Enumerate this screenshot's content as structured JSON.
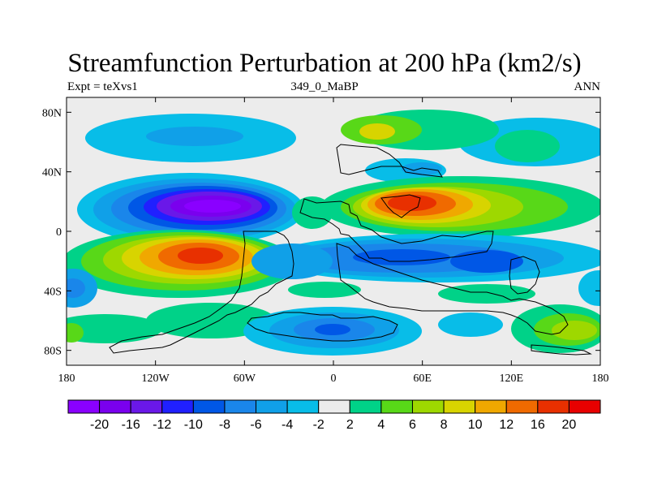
{
  "chart_data": {
    "type": "heatmap",
    "title": "Streamfunction Perturbation at 200 hPa (km2/s)",
    "subtitle_left": "Expt = teXvs1",
    "subtitle_center": "349_0_MaBP",
    "subtitle_right": "ANN",
    "x_range": [
      -180,
      180
    ],
    "y_range": [
      -90,
      90
    ],
    "x_ticks": [
      {
        "value": -180,
        "label": "180"
      },
      {
        "value": -120,
        "label": "120W"
      },
      {
        "value": -60,
        "label": "60W"
      },
      {
        "value": 0,
        "label": "0"
      },
      {
        "value": 60,
        "label": "60E"
      },
      {
        "value": 120,
        "label": "120E"
      },
      {
        "value": 180,
        "label": "180"
      }
    ],
    "y_ticks": [
      {
        "value": 80,
        "label": "80N"
      },
      {
        "value": 40,
        "label": "40N"
      },
      {
        "value": 0,
        "label": "0"
      },
      {
        "value": -40,
        "label": "40S"
      },
      {
        "value": -80,
        "label": "80S"
      }
    ],
    "colorbar": {
      "levels": [
        "-20",
        "-16",
        "-12",
        "-10",
        "-8",
        "-6",
        "-4",
        "-2",
        "2",
        "4",
        "6",
        "8",
        "10",
        "12",
        "16",
        "20"
      ],
      "colors": [
        "#8a00ff",
        "#7a00ee",
        "#6a18e8",
        "#2020ff",
        "#0057e6",
        "#1a86ea",
        "#10a0e8",
        "#08bde8",
        "#ececec",
        "#00d288",
        "#58d818",
        "#9ed800",
        "#d8d400",
        "#f0a800",
        "#f06a00",
        "#e83000",
        "#e80000"
      ]
    },
    "features": [
      {
        "name": "north-pacific-anticyclone",
        "level": "-2",
        "lon": -155,
        "lat": 60,
        "rlon": 50,
        "rlat": 13
      },
      {
        "name": "eurasia-high",
        "level": "-2",
        "lon": 130,
        "lat": 58,
        "rlon": 45,
        "rlat": 14
      },
      {
        "name": "tropical-pacific-low",
        "level": "-20",
        "lon": -95,
        "lat": 18,
        "rlon": 75,
        "rlat": 25
      },
      {
        "name": "south-pacific-high",
        "level": "16",
        "lon": -85,
        "lat": -18,
        "rlon": 75,
        "rlat": 23
      },
      {
        "name": "asia-monsoon-high",
        "level": "16",
        "lon": 50,
        "lat": 22,
        "rlon": 60,
        "rlat": 20
      },
      {
        "name": "indian-ocean-low",
        "level": "-8",
        "lon": 45,
        "lat": -18,
        "rlon": 80,
        "rlat": 16
      },
      {
        "name": "southern-ocean-low",
        "level": "-8",
        "lon": 0,
        "lat": -68,
        "rlon": 55,
        "rlat": 12
      },
      {
        "name": "australia-high",
        "level": "8",
        "lon": 155,
        "lat": -68,
        "rlon": 40,
        "rlat": 13
      }
    ]
  }
}
